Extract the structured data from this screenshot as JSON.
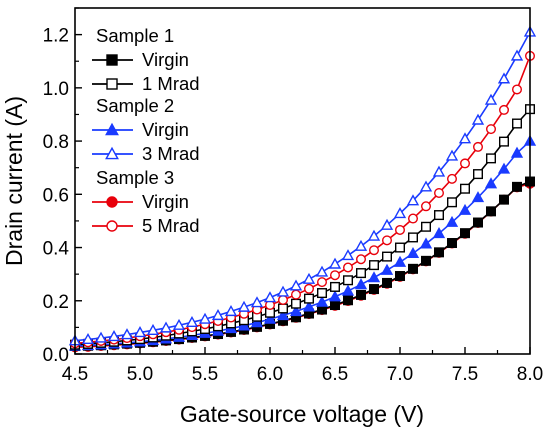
{
  "chart_data": {
    "type": "scatter",
    "xlabel": "Gate-source voltage (V)",
    "ylabel": "Drain current (A)",
    "xlim": [
      4.5,
      8.0
    ],
    "ylim": [
      0.0,
      1.3
    ],
    "xticks": [
      4.5,
      5.0,
      5.5,
      6.0,
      6.5,
      7.0,
      7.5,
      8.0
    ],
    "yticks": [
      0.0,
      0.2,
      0.4,
      0.6,
      0.8,
      1.0,
      1.2
    ],
    "xtick_labels": [
      "4.5",
      "5.0",
      "5.5",
      "6.0",
      "6.5",
      "7.0",
      "7.5",
      "8.0"
    ],
    "ytick_labels": [
      "0.0",
      "0.2",
      "0.4",
      "0.6",
      "0.8",
      "1.0",
      "1.2"
    ],
    "grid": false,
    "legend_position": "top-left",
    "legend_groups": [
      {
        "label": "Sample 1",
        "series": [
          0,
          1
        ]
      },
      {
        "label": "Sample 2",
        "series": [
          2,
          3
        ]
      },
      {
        "label": "Sample 3",
        "series": [
          4,
          5
        ]
      }
    ],
    "x": [
      4.5,
      4.6,
      4.7,
      4.8,
      4.9,
      5.0,
      5.1,
      5.2,
      5.3,
      5.4,
      5.5,
      5.6,
      5.7,
      5.8,
      5.9,
      6.0,
      6.1,
      6.2,
      6.3,
      6.4,
      6.5,
      6.6,
      6.7,
      6.8,
      6.9,
      7.0,
      7.1,
      7.2,
      7.3,
      7.4,
      7.5,
      7.6,
      7.7,
      7.8,
      7.9,
      8.0
    ],
    "series": [
      {
        "name": "Virgin",
        "color": "#000000",
        "marker": "square",
        "filled": true,
        "values": [
          0.03,
          0.031,
          0.033,
          0.036,
          0.039,
          0.042,
          0.046,
          0.051,
          0.056,
          0.062,
          0.068,
          0.075,
          0.083,
          0.092,
          0.102,
          0.113,
          0.125,
          0.138,
          0.152,
          0.167,
          0.184,
          0.202,
          0.222,
          0.244,
          0.267,
          0.293,
          0.32,
          0.35,
          0.382,
          0.417,
          0.454,
          0.494,
          0.536,
          0.58,
          0.628,
          0.648
        ]
      },
      {
        "name": "1 Mrad",
        "color": "#000000",
        "marker": "square",
        "filled": false,
        "values": [
          0.035,
          0.038,
          0.042,
          0.046,
          0.051,
          0.056,
          0.062,
          0.069,
          0.077,
          0.085,
          0.094,
          0.104,
          0.115,
          0.127,
          0.14,
          0.155,
          0.171,
          0.189,
          0.208,
          0.229,
          0.252,
          0.277,
          0.304,
          0.334,
          0.366,
          0.4,
          0.438,
          0.478,
          0.522,
          0.57,
          0.621,
          0.676,
          0.735,
          0.798,
          0.866,
          0.92
        ]
      },
      {
        "name": "Virgin",
        "color": "#1a3bff",
        "marker": "triangle",
        "filled": true,
        "values": [
          0.03,
          0.032,
          0.035,
          0.038,
          0.042,
          0.046,
          0.051,
          0.057,
          0.063,
          0.07,
          0.078,
          0.086,
          0.096,
          0.106,
          0.118,
          0.131,
          0.145,
          0.16,
          0.177,
          0.195,
          0.215,
          0.237,
          0.261,
          0.287,
          0.315,
          0.345,
          0.378,
          0.414,
          0.453,
          0.495,
          0.54,
          0.588,
          0.64,
          0.695,
          0.755,
          0.8
        ]
      },
      {
        "name": "3 Mrad",
        "color": "#1a3bff",
        "marker": "triangle",
        "filled": false,
        "values": [
          0.05,
          0.055,
          0.06,
          0.066,
          0.073,
          0.081,
          0.089,
          0.098,
          0.108,
          0.119,
          0.131,
          0.145,
          0.16,
          0.176,
          0.193,
          0.212,
          0.233,
          0.256,
          0.281,
          0.308,
          0.338,
          0.37,
          0.405,
          0.443,
          0.484,
          0.528,
          0.576,
          0.628,
          0.684,
          0.744,
          0.809,
          0.879,
          0.954,
          1.034,
          1.12,
          1.21
        ]
      },
      {
        "name": "Virgin",
        "color": "#e8000b",
        "marker": "circle",
        "filled": true,
        "values": [
          0.025,
          0.027,
          0.03,
          0.033,
          0.036,
          0.04,
          0.044,
          0.049,
          0.054,
          0.06,
          0.066,
          0.073,
          0.081,
          0.09,
          0.1,
          0.111,
          0.123,
          0.136,
          0.15,
          0.165,
          0.181,
          0.199,
          0.219,
          0.241,
          0.264,
          0.29,
          0.318,
          0.348,
          0.38,
          0.415,
          0.452,
          0.492,
          0.535,
          0.58,
          0.626,
          0.64
        ]
      },
      {
        "name": "5 Mrad",
        "color": "#e8000b",
        "marker": "circle",
        "filled": false,
        "values": [
          0.04,
          0.044,
          0.049,
          0.054,
          0.06,
          0.067,
          0.074,
          0.082,
          0.091,
          0.101,
          0.112,
          0.124,
          0.137,
          0.151,
          0.167,
          0.184,
          0.203,
          0.223,
          0.245,
          0.27,
          0.296,
          0.325,
          0.356,
          0.39,
          0.427,
          0.466,
          0.509,
          0.555,
          0.605,
          0.658,
          0.716,
          0.778,
          0.845,
          0.917,
          0.994,
          1.12
        ]
      }
    ]
  }
}
